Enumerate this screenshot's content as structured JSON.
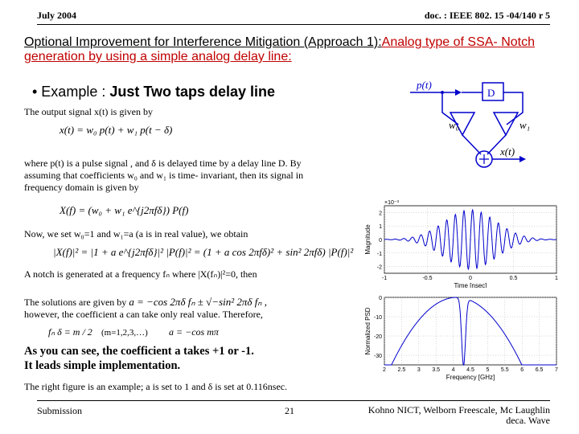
{
  "header": {
    "date": "July 2004",
    "doc": "doc. : IEEE 802. 15 -04/140 r 5"
  },
  "title": {
    "t1": "Optional Improvement for Interference Mitigation (Approach 1):",
    "t2": "Analog type of SSA-",
    "t3_red": " Notch generation by using a simple analog delay line:"
  },
  "bullet": {
    "lead": "•  Example :",
    "rest": " Just Two taps delay line"
  },
  "lines": {
    "sub": "The output signal x(t) is given by",
    "where": "where p(t) is a pulse signal , and δ is delayed time by a delay line D. By assuming that coefficients w₀ and w₁ is time- invariant, then its signal in frequency domain is given by",
    "nowwe": "Now, we set w₀=1 and w₁=a (a is in real value), we obtain",
    "notch": "A notch is generated at a frequency fₙ where |X(fₙ)|²=0, then",
    "sol1": "The solutions are given by",
    "sol2": "however, the coefficient a can take only real value. Therefore,",
    "conc1": "As you can see, the coefficient a takes +1 or -1.",
    "conc2": "It leads simple implementation.",
    "rightfig": "The right figure is an example; a is set to 1 and δ is set at 0.116nsec."
  },
  "eq": {
    "e1": "x(t) = w₀ p(t) + w₁ p(t − δ)",
    "e2": "X(f) = (w₀ + w₁ e^{j2πfδ}) P(f)",
    "e3": "|X(f)|² = |1 + a e^{j2πfδ}|² |P(f)|² = (1 + a cos 2πfδ)² + sin² 2πfδ) |P(f)|²",
    "e4": "a = −cos 2πδ fₙ ± √−sin² 2πδ fₙ ,",
    "e5l": "fₙ δ = m / 2",
    "e5m": "(m=1,2,3,…)",
    "e5r": "a = −cos mπ"
  },
  "bd": {
    "pt": "p(t)",
    "D": "D",
    "w0": "w₀",
    "w1": "w₁",
    "xt": "x(t)",
    "boxcolor": "#0000cc",
    "linecolor": "#0000cc"
  },
  "wave": {
    "ylabel": "Magnitude",
    "xlabel": "Time [nsec]",
    "ye": "×10⁻³",
    "xmin": -1,
    "xmax": 1,
    "ymin": -2.5,
    "ymax": 2.5,
    "xticks": [
      -1,
      -0.5,
      0,
      0.5,
      1
    ],
    "yticks": [
      -2,
      -1,
      0,
      1,
      2
    ],
    "grid": "#b0b0b0",
    "stroke": "#0000cc",
    "bg": "#ffffff",
    "gauss_sigma": 0.3,
    "carrier_cycles": 20,
    "amp": 2.2
  },
  "spec": {
    "ylabel": "Normalized PSD",
    "xlabel": "Frequency [GHz]",
    "xmin": 2,
    "xmax": 7,
    "ymin": -35,
    "ymax": 0,
    "xticks": [
      2,
      2.5,
      3,
      3.5,
      4,
      4.5,
      5,
      5.5,
      6,
      6.5,
      7
    ],
    "yticks": [
      -30,
      -20,
      -10,
      0
    ],
    "grid": "#b0b0b0",
    "stroke": "#0000cc",
    "bg": "#ffffff",
    "f0": 4.1,
    "bw": 1.6,
    "notch_f": 4.3,
    "notch_depth": -40
  },
  "footer": {
    "l": "Submission",
    "c": "21",
    "r1": "Kohno NICT, Welborn Freescale, Mc Laughlin",
    "r2": "deca. Wave"
  }
}
